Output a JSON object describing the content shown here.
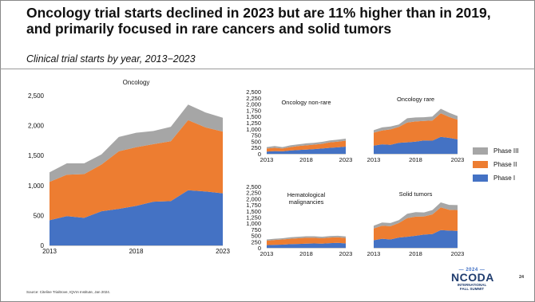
{
  "slide": {
    "title_line1": "Oncology trial starts declined in 2023 but are 11% higher than in 2019,",
    "title_line2": "and primarily focused in rare cancers and solid tumors",
    "subtitle": "Clinical trial starts by year, 2013−2023",
    "source": "Source: Citeline Trialtrove, IQVIA Institute, Jan 2024.",
    "page_number": "24",
    "logo": {
      "year": "— 2024 —",
      "name": "NCODA",
      "line1": "INTERNATIONAL",
      "line2": "FALL SUMMIT"
    }
  },
  "legend": [
    {
      "label": "Phase III",
      "color": "#a6a6a6"
    },
    {
      "label": "Phase II",
      "color": "#ed7d31"
    },
    {
      "label": "Phase I",
      "color": "#4472c4"
    }
  ],
  "colors": {
    "phase1": "#4472c4",
    "phase2": "#ed7d31",
    "phase3": "#a6a6a6"
  },
  "chart_data": [
    {
      "id": "oncology",
      "type": "area",
      "stacked": true,
      "title": "Oncology",
      "x": [
        2013,
        2014,
        2015,
        2016,
        2017,
        2018,
        2019,
        2020,
        2021,
        2022,
        2023
      ],
      "xticks": [
        "2013",
        "2018",
        "2023"
      ],
      "ylim": [
        0,
        2500
      ],
      "yticks": [
        "0",
        "500",
        "1,000",
        "1,500",
        "2,000",
        "2,500"
      ],
      "series": [
        {
          "name": "Phase I",
          "values": [
            420,
            490,
            460,
            570,
            610,
            660,
            730,
            740,
            920,
            900,
            870
          ]
        },
        {
          "name": "Phase II",
          "values": [
            640,
            690,
            730,
            780,
            960,
            980,
            960,
            1000,
            1170,
            1070,
            1030
          ]
        },
        {
          "name": "Phase III",
          "values": [
            160,
            190,
            180,
            170,
            240,
            240,
            220,
            240,
            260,
            250,
            230
          ]
        }
      ]
    },
    {
      "id": "non-rare",
      "type": "area",
      "stacked": true,
      "title": "Oncology non-rare",
      "x": [
        2013,
        2014,
        2015,
        2016,
        2017,
        2018,
        2019,
        2020,
        2021,
        2022,
        2023
      ],
      "xticks": [
        "2013",
        "2018",
        "2023"
      ],
      "ylim": [
        0,
        2500
      ],
      "yticks": [
        "0",
        "250",
        "500",
        "750",
        "1,000",
        "1,250",
        "1,500",
        "1,750",
        "2,000",
        "2,250",
        "2,500"
      ],
      "series": [
        {
          "name": "Phase I",
          "values": [
            90,
            110,
            100,
            130,
            150,
            170,
            190,
            210,
            240,
            260,
            290
          ]
        },
        {
          "name": "Phase II",
          "values": [
            120,
            130,
            110,
            140,
            160,
            170,
            180,
            190,
            220,
            230,
            240
          ]
        },
        {
          "name": "Phase III",
          "values": [
            60,
            70,
            60,
            70,
            70,
            80,
            70,
            80,
            80,
            80,
            80
          ]
        }
      ]
    },
    {
      "id": "rare",
      "type": "area",
      "stacked": true,
      "title": "Oncology rare",
      "x": [
        2013,
        2014,
        2015,
        2016,
        2017,
        2018,
        2019,
        2020,
        2021,
        2022,
        2023
      ],
      "xticks": [
        "2013",
        "2018",
        "2023"
      ],
      "ylim": [
        0,
        2500
      ],
      "yticks": [],
      "series": [
        {
          "name": "Phase I",
          "values": [
            330,
            380,
            360,
            440,
            460,
            490,
            540,
            530,
            680,
            640,
            580
          ]
        },
        {
          "name": "Phase II",
          "values": [
            520,
            560,
            620,
            640,
            800,
            810,
            780,
            810,
            950,
            840,
            790
          ]
        },
        {
          "name": "Phase III",
          "values": [
            100,
            120,
            120,
            100,
            170,
            160,
            150,
            160,
            180,
            170,
            150
          ]
        }
      ]
    },
    {
      "id": "heme",
      "type": "area",
      "stacked": true,
      "title": "Hematological malignancies",
      "title_lines": [
        "Hematological",
        "malignancies"
      ],
      "x": [
        2013,
        2014,
        2015,
        2016,
        2017,
        2018,
        2019,
        2020,
        2021,
        2022,
        2023
      ],
      "xticks": [
        "2013",
        "2018",
        "2023"
      ],
      "ylim": [
        0,
        2500
      ],
      "yticks": [
        "0",
        "250",
        "500",
        "750",
        "1,000",
        "1,250",
        "1,500",
        "1,750",
        "2,000",
        "2,250",
        "2,500"
      ],
      "series": [
        {
          "name": "Phase I",
          "values": [
            110,
            120,
            130,
            150,
            160,
            170,
            180,
            170,
            190,
            200,
            180
          ]
        },
        {
          "name": "Phase II",
          "values": [
            180,
            200,
            210,
            220,
            230,
            240,
            230,
            220,
            230,
            230,
            220
          ]
        },
        {
          "name": "Phase III",
          "values": [
            50,
            50,
            50,
            60,
            60,
            60,
            60,
            60,
            60,
            60,
            60
          ]
        }
      ]
    },
    {
      "id": "solid",
      "type": "area",
      "stacked": true,
      "title": "Solid tumors",
      "x": [
        2013,
        2014,
        2015,
        2016,
        2017,
        2018,
        2019,
        2020,
        2021,
        2022,
        2023
      ],
      "xticks": [
        "2013",
        "2018",
        "2023"
      ],
      "ylim": [
        0,
        2500
      ],
      "yticks": [],
      "series": [
        {
          "name": "Phase I",
          "values": [
            310,
            370,
            340,
            420,
            450,
            490,
            540,
            560,
            720,
            700,
            690
          ]
        },
        {
          "name": "Phase II",
          "values": [
            480,
            530,
            540,
            590,
            760,
            780,
            740,
            800,
            930,
            850,
            850
          ]
        },
        {
          "name": "Phase III",
          "values": [
            110,
            130,
            130,
            120,
            180,
            180,
            160,
            180,
            200,
            200,
            200
          ]
        }
      ]
    }
  ]
}
